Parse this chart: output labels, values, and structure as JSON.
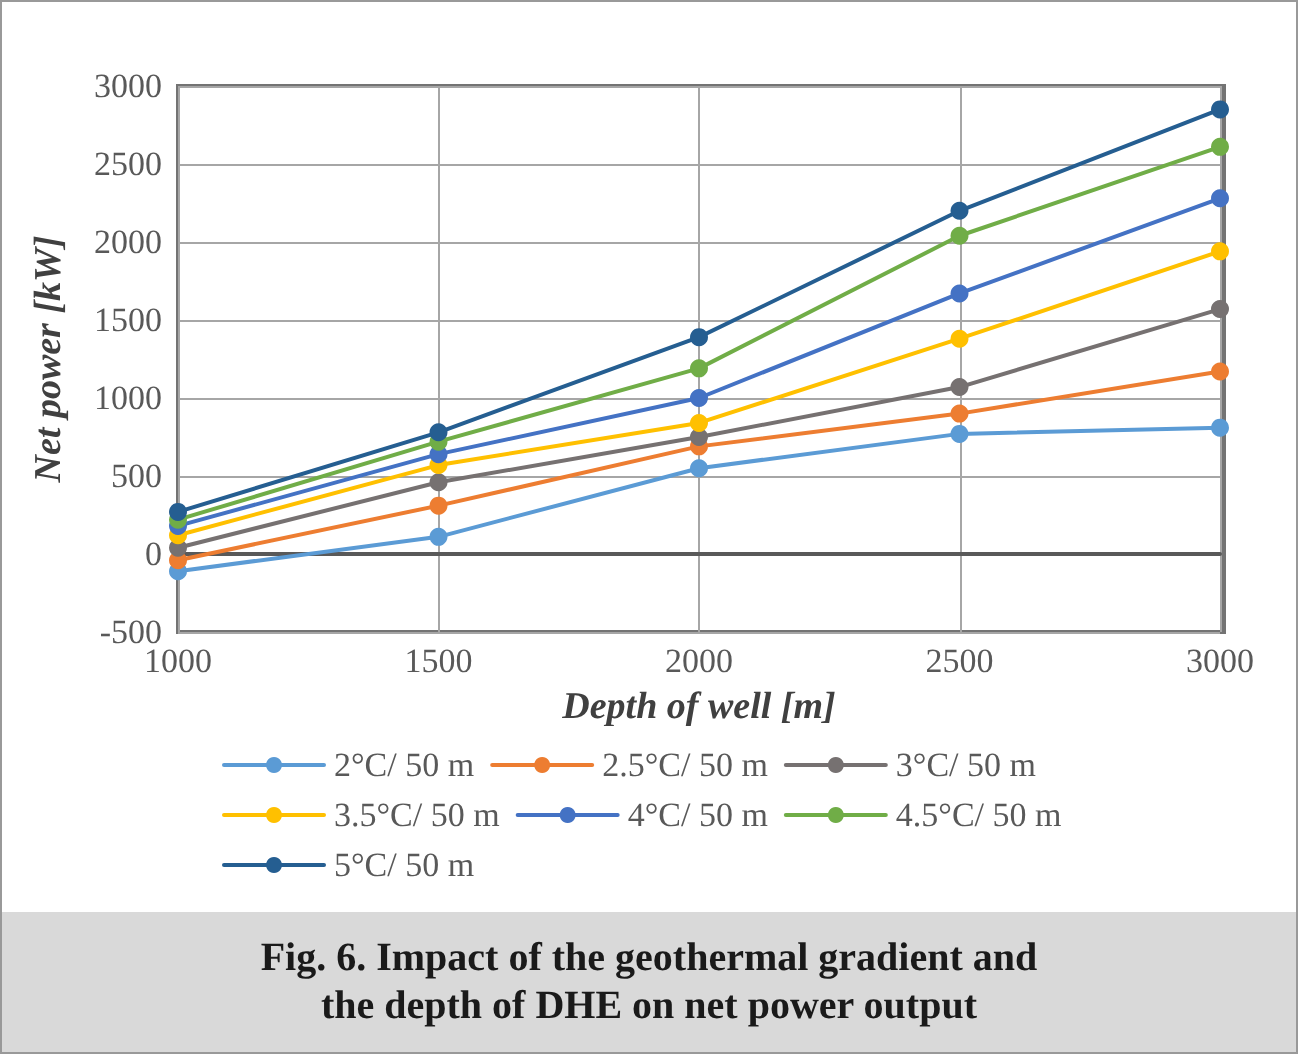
{
  "chart_data": {
    "type": "line",
    "xlabel": "Depth of well [m]",
    "ylabel": "Net power [kW]",
    "annotations": [
      "Fig. 6. Impact of the geothermal gradient and\nthe depth of DHE on net power output"
    ],
    "categories": [
      "1000",
      "1500",
      "2000",
      "2500",
      "3000"
    ],
    "ylim": [
      -500,
      3000
    ],
    "yticks": [
      -500,
      0,
      500,
      1000,
      1500,
      2000,
      2500,
      3000
    ],
    "grid": true,
    "legend": "bottom",
    "marker": "circle",
    "line_style": "solid",
    "series": [
      {
        "name": "2°C/ 50 m",
        "color": "#5b9bd5",
        "values": [
          -110,
          110,
          550,
          770,
          810
        ]
      },
      {
        "name": "2.5°C/ 50 m",
        "color": "#ed7d31",
        "values": [
          -40,
          310,
          690,
          900,
          1170
        ]
      },
      {
        "name": "3°C/ 50 m",
        "color": "#767171",
        "values": [
          40,
          460,
          750,
          1070,
          1570
        ]
      },
      {
        "name": "3.5°C/ 50 m",
        "color": "#ffc000",
        "values": [
          120,
          570,
          840,
          1380,
          1940
        ]
      },
      {
        "name": "4°C/ 50 m",
        "color": "#4472c4",
        "values": [
          180,
          640,
          1000,
          1670,
          2280
        ]
      },
      {
        "name": "4.5°C/ 50 m",
        "color": "#70ad47",
        "values": [
          220,
          720,
          1190,
          2040,
          2610
        ]
      },
      {
        "name": "5°C/ 50 m",
        "color": "#255e91",
        "values": [
          270,
          780,
          1390,
          2200,
          2850
        ]
      }
    ]
  }
}
